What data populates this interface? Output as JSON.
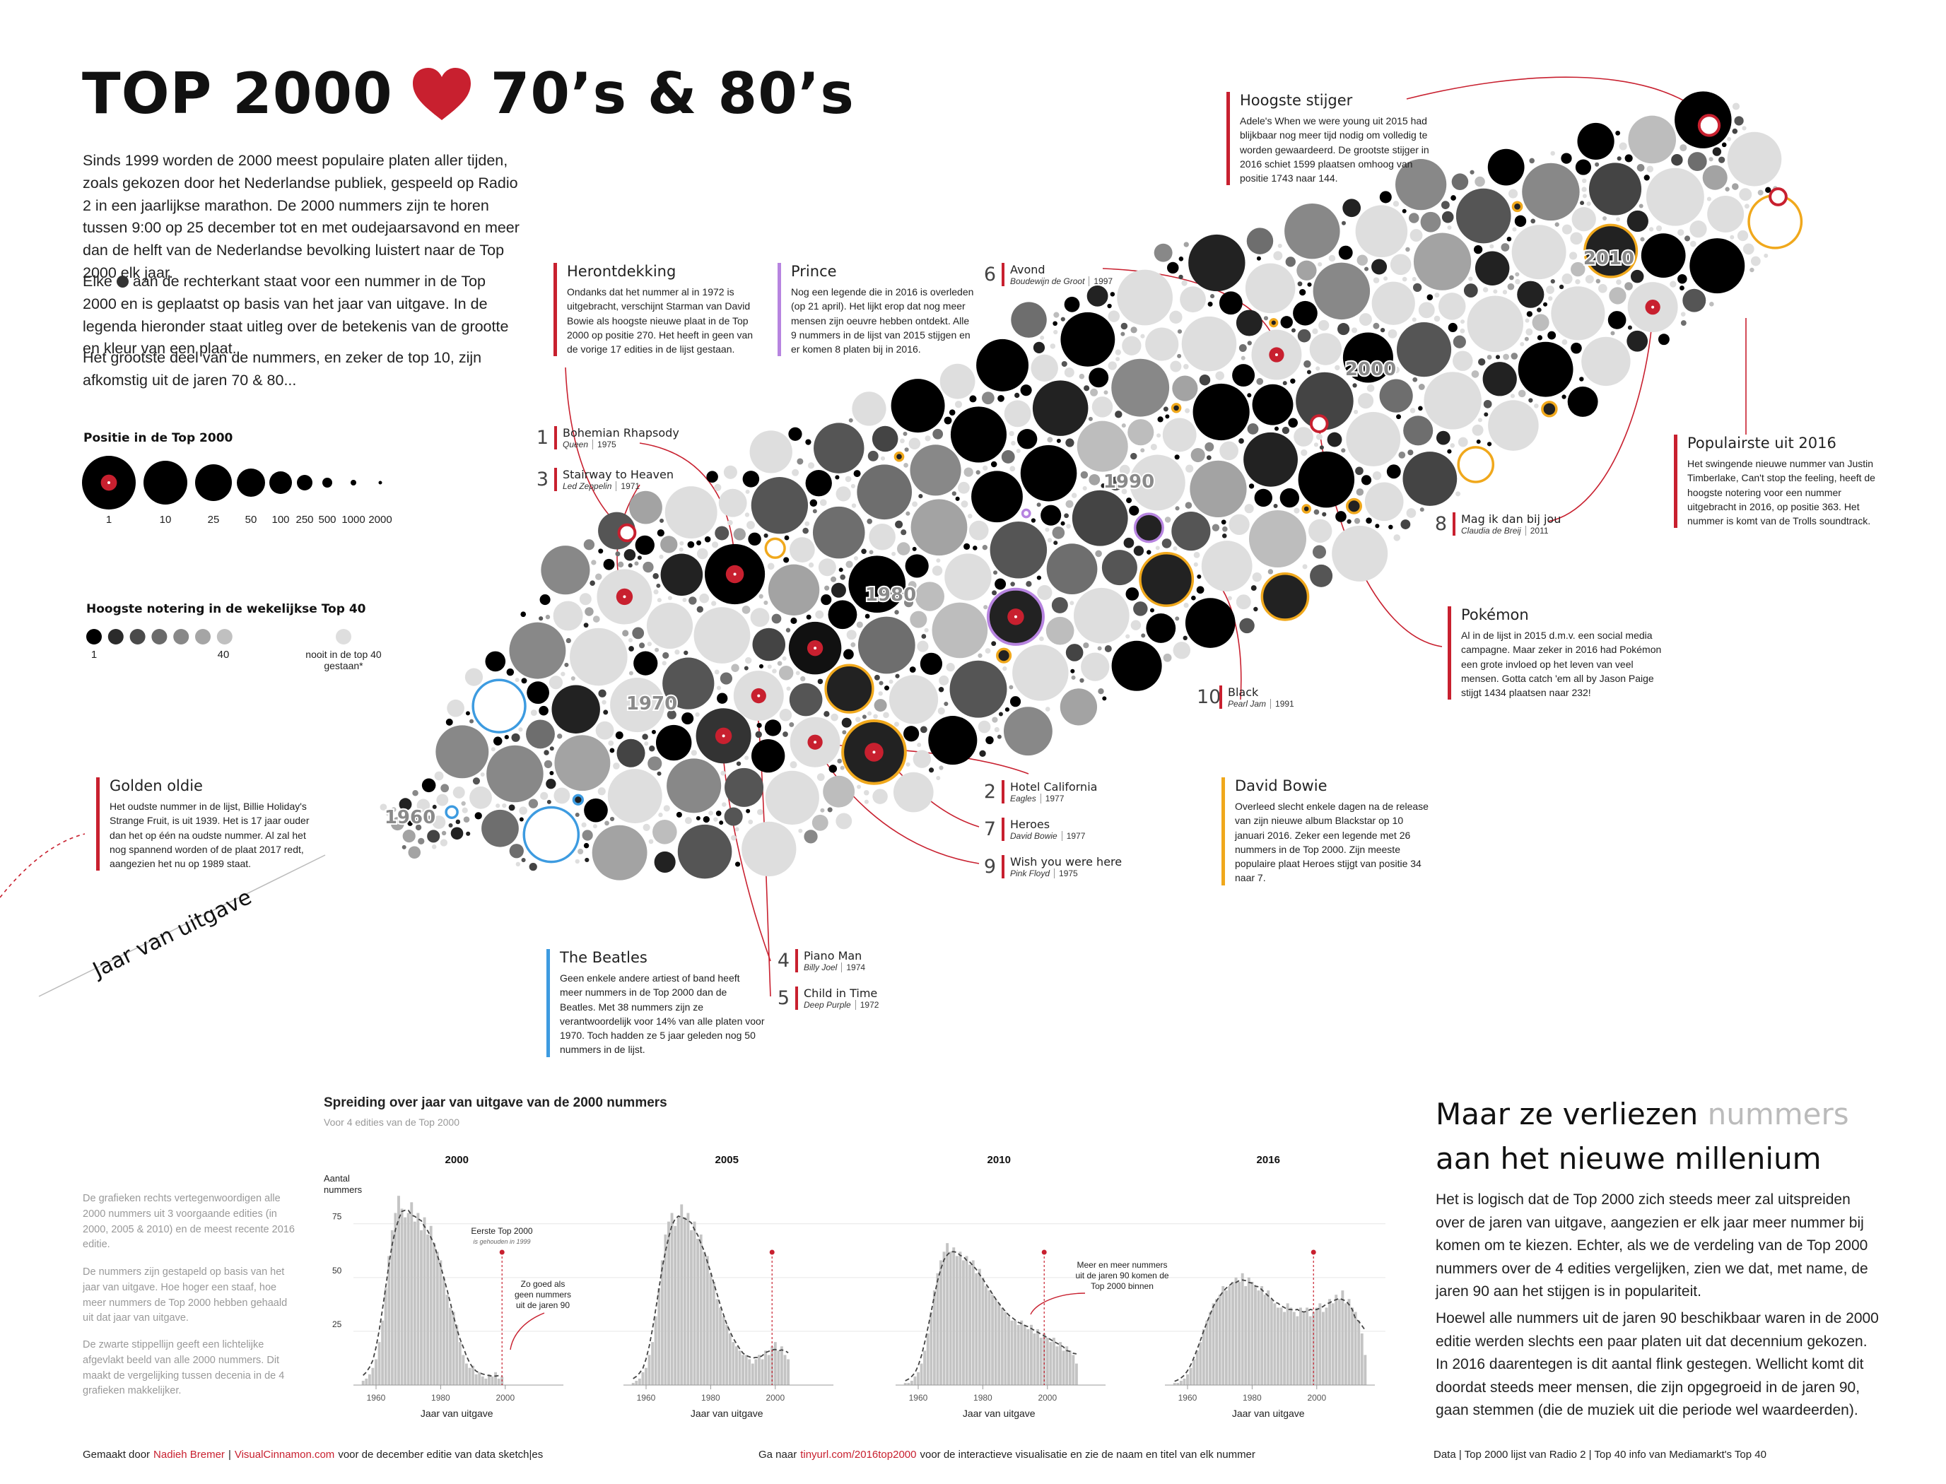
{
  "header": {
    "title_left": "TOP 2000",
    "title_right": "70’s & 80’s",
    "intro_1": "Sinds 1999 worden de 2000 meest populaire platen aller tijden, zoals gekozen door het Nederlandse publiek, gespeeld op Radio 2 in een jaarlijkse marathon. De 2000 nummers zijn te horen tussen 9:00 op 25 december tot en met oudejaarsavond en meer dan de helft van de Nederlandse bevolking luistert naar de Top 2000 elk jaar.",
    "intro_2a": "Elke",
    "intro_2b": "aan de rechterkant staat voor een nummer in de Top 2000 en is geplaatst op basis van het jaar van uitgave. In de legenda hieronder staat uitleg over de betekenis van de grootte en kleur van een plaat.",
    "intro_3": "Het grootste deel van de nummers, en zeker de top 10, zijn afkomstig uit de jaren 70 & 80..."
  },
  "legend": {
    "size_title": "Positie in de Top 2000",
    "size_labels": [
      "1",
      "10",
      "25",
      "50",
      "100",
      "250",
      "500",
      "1000",
      "2000"
    ],
    "color_title": "Hoogste notering in de wekelijkse Top 40",
    "color_low": "1",
    "color_high": "40",
    "never": "nooit in de top 40 gestaan*"
  },
  "cloud": {
    "year_labels": [
      "1960",
      "1970",
      "1980",
      "1990",
      "2000",
      "2010"
    ],
    "axis_label": "Jaar van uitgave"
  },
  "annotations": [
    {
      "title": "Herontdekking",
      "color": "#c8202f",
      "body": "Ondanks dat het nummer al in 1972 is uitgebracht, verschijnt Starman van David Bowie als hoogste nieuwe plaat in de Top 2000 op positie 270. Het heeft in geen van de vorige 17 edities in de lijst gestaan."
    },
    {
      "title": "Prince",
      "color": "#b784e0",
      "body": "Nog een legende die in 2016 is overleden (op 21 april). Het lijkt erop dat nog meer mensen zijn oeuvre hebben ontdekt. Alle 9 nummers in de lijst van 2015 stijgen en er komen 8 platen bij in 2016."
    },
    {
      "title": "Hoogste stijger",
      "color": "#c8202f",
      "body": "Adele's When we were young uit 2015 had blijkbaar nog meer tijd nodig om volledig te worden gewaardeerd. De grootste stijger in 2016 schiet 1599 plaatsen omhoog van positie 1743 naar 144."
    },
    {
      "title": "Populairste uit 2016",
      "color": "#c8202f",
      "body": "Het swingende nieuwe nummer van Justin Timberlake, Can't stop the feeling, heeft de hoogste notering voor een nummer uitgebracht in 2016, op positie 363. Het nummer is komt van de Trolls soundtrack."
    },
    {
      "title": "Pokémon",
      "color": "#c8202f",
      "body": "Al in de lijst in 2015 d.m.v. een social media campagne. Maar zeker in 2016 had Pokémon een grote invloed op het leven van veel mensen. Gotta catch 'em all by Jason Paige stijgt 1434 plaatsen naar 232!"
    },
    {
      "title": "David Bowie",
      "color": "#f0a81c",
      "body": "Overleed slecht enkele dagen na de release van zijn nieuwe album Blackstar op 10 januari 2016. Zeker een legende met 26 nummers in de Top 2000. Zijn meeste populaire plaat Heroes stijgt van positie 34 naar 7."
    },
    {
      "title": "Golden oldie",
      "color": "#c8202f",
      "body": "Het oudste nummer in de lijst, Billie Holiday's Strange Fruit, is uit 1939. Het is 17 jaar ouder dan het op één na oudste nummer. Al zal het nog spannend worden of de plaat 2017 redt, aangezien het nu op 1989 staat."
    },
    {
      "title": "The Beatles",
      "color": "#3d9be0",
      "body": "Geen enkele andere artiest of band heeft meer nummers in de Top 2000 dan de Beatles. Met 38 nummers zijn ze verantwoordelijk voor 14% van alle platen voor 1970. Toch hadden ze 5 jaar geleden nog 50 nummers in de lijst."
    }
  ],
  "songs": [
    {
      "rank": 1,
      "title": "Bohemian Rhapsody",
      "artist": "Queen",
      "year": 1975
    },
    {
      "rank": 3,
      "title": "Stairway to Heaven",
      "artist": "Led Zeppelin",
      "year": 1971
    },
    {
      "rank": 6,
      "title": "Avond",
      "artist": "Boudewijn de Groot",
      "year": 1997
    },
    {
      "rank": 8,
      "title": "Mag ik dan bij jou",
      "artist": "Claudia de Breij",
      "year": 2011
    },
    {
      "rank": 10,
      "title": "Black",
      "artist": "Pearl Jam",
      "year": 1991
    },
    {
      "rank": 2,
      "title": "Hotel California",
      "artist": "Eagles",
      "year": 1977
    },
    {
      "rank": 7,
      "title": "Heroes",
      "artist": "David Bowie",
      "year": 1977
    },
    {
      "rank": 9,
      "title": "Wish you were here",
      "artist": "Pink Floyd",
      "year": 1975
    },
    {
      "rank": 4,
      "title": "Piano Man",
      "artist": "Billy Joel",
      "year": 1974
    },
    {
      "rank": 5,
      "title": "Child in Time",
      "artist": "Deep Purple",
      "year": 1972
    }
  ],
  "histograms": {
    "title": "Spreiding over jaar van uitgave van de 2000 nummers",
    "subtitle": "Voor 4 edities van de Top 2000",
    "y_label": "Aantal nummers",
    "x_label": "Jaar van uitgave",
    "color": "#c4c4c4",
    "first_edition_year": 1999,
    "ylim": [
      0,
      92
    ],
    "yticks": [
      25,
      50,
      75
    ],
    "xlim": [
      1953,
      2018
    ],
    "xticks": [
      1960,
      1980,
      2000
    ],
    "x": [
      1956,
      1957,
      1958,
      1959,
      1960,
      1961,
      1962,
      1963,
      1964,
      1965,
      1966,
      1967,
      1968,
      1969,
      1970,
      1971,
      1972,
      1973,
      1974,
      1975,
      1976,
      1977,
      1978,
      1979,
      1980,
      1981,
      1982,
      1983,
      1984,
      1985,
      1986,
      1987,
      1988,
      1989,
      1990,
      1991,
      1992,
      1993,
      1994,
      1995,
      1996,
      1997,
      1998,
      1999,
      2000,
      2001,
      2002,
      2003,
      2004,
      2005,
      2006,
      2007,
      2008,
      2009,
      2010,
      2011,
      2012,
      2013,
      2014,
      2015
    ],
    "panels": [
      {
        "title": "2000",
        "values": [
          2,
          3,
          5,
          8,
          12,
          20,
          30,
          45,
          60,
          72,
          80,
          88,
          82,
          78,
          80,
          85,
          76,
          80,
          72,
          78,
          70,
          74,
          66,
          62,
          58,
          50,
          42,
          36,
          34,
          28,
          20,
          14,
          10,
          8,
          9,
          5,
          6,
          4,
          3,
          5,
          4,
          6,
          3,
          4,
          null,
          null,
          null,
          null,
          null,
          null,
          null,
          null,
          null,
          null,
          null,
          null,
          null,
          null,
          null,
          null
        ]
      },
      {
        "title": "2005",
        "values": [
          1,
          2,
          3,
          6,
          8,
          14,
          20,
          32,
          45,
          58,
          70,
          76,
          80,
          74,
          78,
          84,
          78,
          80,
          72,
          76,
          68,
          70,
          62,
          60,
          52,
          48,
          40,
          36,
          32,
          28,
          24,
          20,
          18,
          16,
          14,
          14,
          12,
          10,
          12,
          14,
          12,
          16,
          14,
          18,
          20,
          16,
          18,
          14,
          12,
          null,
          null,
          null,
          null,
          null,
          null,
          null,
          null,
          null,
          null,
          null
        ]
      },
      {
        "title": "2010",
        "values": [
          1,
          1,
          2,
          4,
          6,
          10,
          16,
          24,
          34,
          44,
          52,
          58,
          62,
          66,
          62,
          64,
          60,
          62,
          58,
          60,
          56,
          58,
          52,
          54,
          50,
          46,
          44,
          42,
          40,
          38,
          36,
          34,
          32,
          30,
          30,
          28,
          30,
          28,
          26,
          28,
          24,
          26,
          22,
          24,
          22,
          20,
          22,
          18,
          20,
          16,
          18,
          16,
          14,
          10,
          null,
          null,
          null,
          null,
          null,
          null
        ]
      },
      {
        "title": "2016",
        "values": [
          1,
          1,
          2,
          3,
          5,
          8,
          12,
          16,
          20,
          26,
          30,
          34,
          38,
          40,
          42,
          46,
          44,
          46,
          48,
          50,
          48,
          52,
          46,
          50,
          48,
          46,
          44,
          46,
          42,
          44,
          40,
          38,
          36,
          36,
          34,
          38,
          36,
          34,
          32,
          36,
          34,
          36,
          32,
          34,
          36,
          38,
          34,
          36,
          40,
          38,
          42,
          40,
          44,
          38,
          40,
          36,
          34,
          30,
          24,
          14
        ]
      }
    ],
    "note_first": "Eerste Top 2000",
    "note_first_sub": "is gehouden in 1999",
    "note_90s": "Zo goed als geen nummers uit de jaren 90",
    "note_more": "Meer en meer nummers uit de jaren 90 komen de Top 2000 binnen"
  },
  "side_note": [
    "De grafieken rechts vertegenwoordigen alle 2000 nummers uit 3 voorgaande edities (in 2000, 2005 & 2010) en de meest recente 2016 editie.",
    "De nummers zijn gestapeld op basis van het jaar van uitgave. Hoe hoger een staaf, hoe meer nummers de Top 2000 hebben gehaald uit dat jaar van uitgave.",
    "De zwarte stippellijn geeft een lichtelijke afgevlakt beeld van alle 2000 nummers. Dit maakt de vergelijking tussen decenia in de 4 grafieken makkelijker."
  ],
  "conclusion": {
    "title_a": "Maar ze verliezen",
    "title_b": "nummers",
    "title_c": "aan het nieuwe millenium",
    "p1": "Het is logisch dat de Top 2000 zich steeds meer zal uitspreiden over de jaren van uitgave, aangezien er elk jaar meer nummer bij komen om te kiezen. Echter, als we de verdeling van de Top 2000 nummers over de 4 edities vergelijken, zien we dat, met name, de jaren 90 aan het stijgen is in populariteit.",
    "p2": "Hoewel alle nummers uit de jaren 90 beschikbaar waren in de 2000 editie werden slechts een paar platen uit dat decennium gekozen. In 2016 daarentegen is dit aantal flink gestegen. Wellicht komt dit doordat steeds meer mensen, die zijn opgegroeid in de jaren 90, gaan stemmen (die de muziek uit die periode wel waardeerden)."
  },
  "footer": {
    "left": [
      "Gemaakt door",
      "Nadieh Bremer",
      "|",
      "VisualCinnamon.com",
      "voor de december editie van data sketch|es"
    ],
    "middle": [
      "Ga naar",
      "tinyurl.com/2016top2000",
      "voor de interactieve visualisatie en zie de naam en titel van elk nummer"
    ],
    "right": "Data | Top 2000 lijst van Radio 2 | Top 40 info van Mediamarkt's Top 40"
  }
}
